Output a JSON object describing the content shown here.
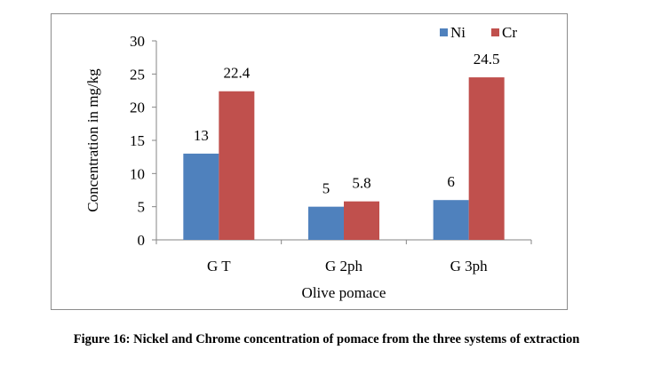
{
  "chart_data": {
    "type": "bar",
    "categories": [
      "GT",
      "G2ph",
      "G3ph"
    ],
    "category_labels": [
      "G T",
      "G 2ph",
      "G 3ph"
    ],
    "series": [
      {
        "name": "Ni",
        "values": [
          13,
          5,
          6
        ],
        "value_labels": [
          "13",
          "5",
          "6"
        ],
        "color": "#4f81bd"
      },
      {
        "name": "Cr",
        "values": [
          22.4,
          5.8,
          24.5
        ],
        "value_labels": [
          "22.4",
          "5.8",
          "24.5"
        ],
        "color": "#c0504d"
      }
    ],
    "xlabel": "Olive pomace",
    "ylabel": "Concentration in mg/kg",
    "ylim": [
      0,
      30
    ],
    "yticks": [
      0,
      5,
      10,
      15,
      20,
      25,
      30
    ],
    "grid": false,
    "legend_position": "top-right"
  },
  "caption": "Figure 16: Nickel and Chrome concentration of pomace from the three systems of extraction"
}
